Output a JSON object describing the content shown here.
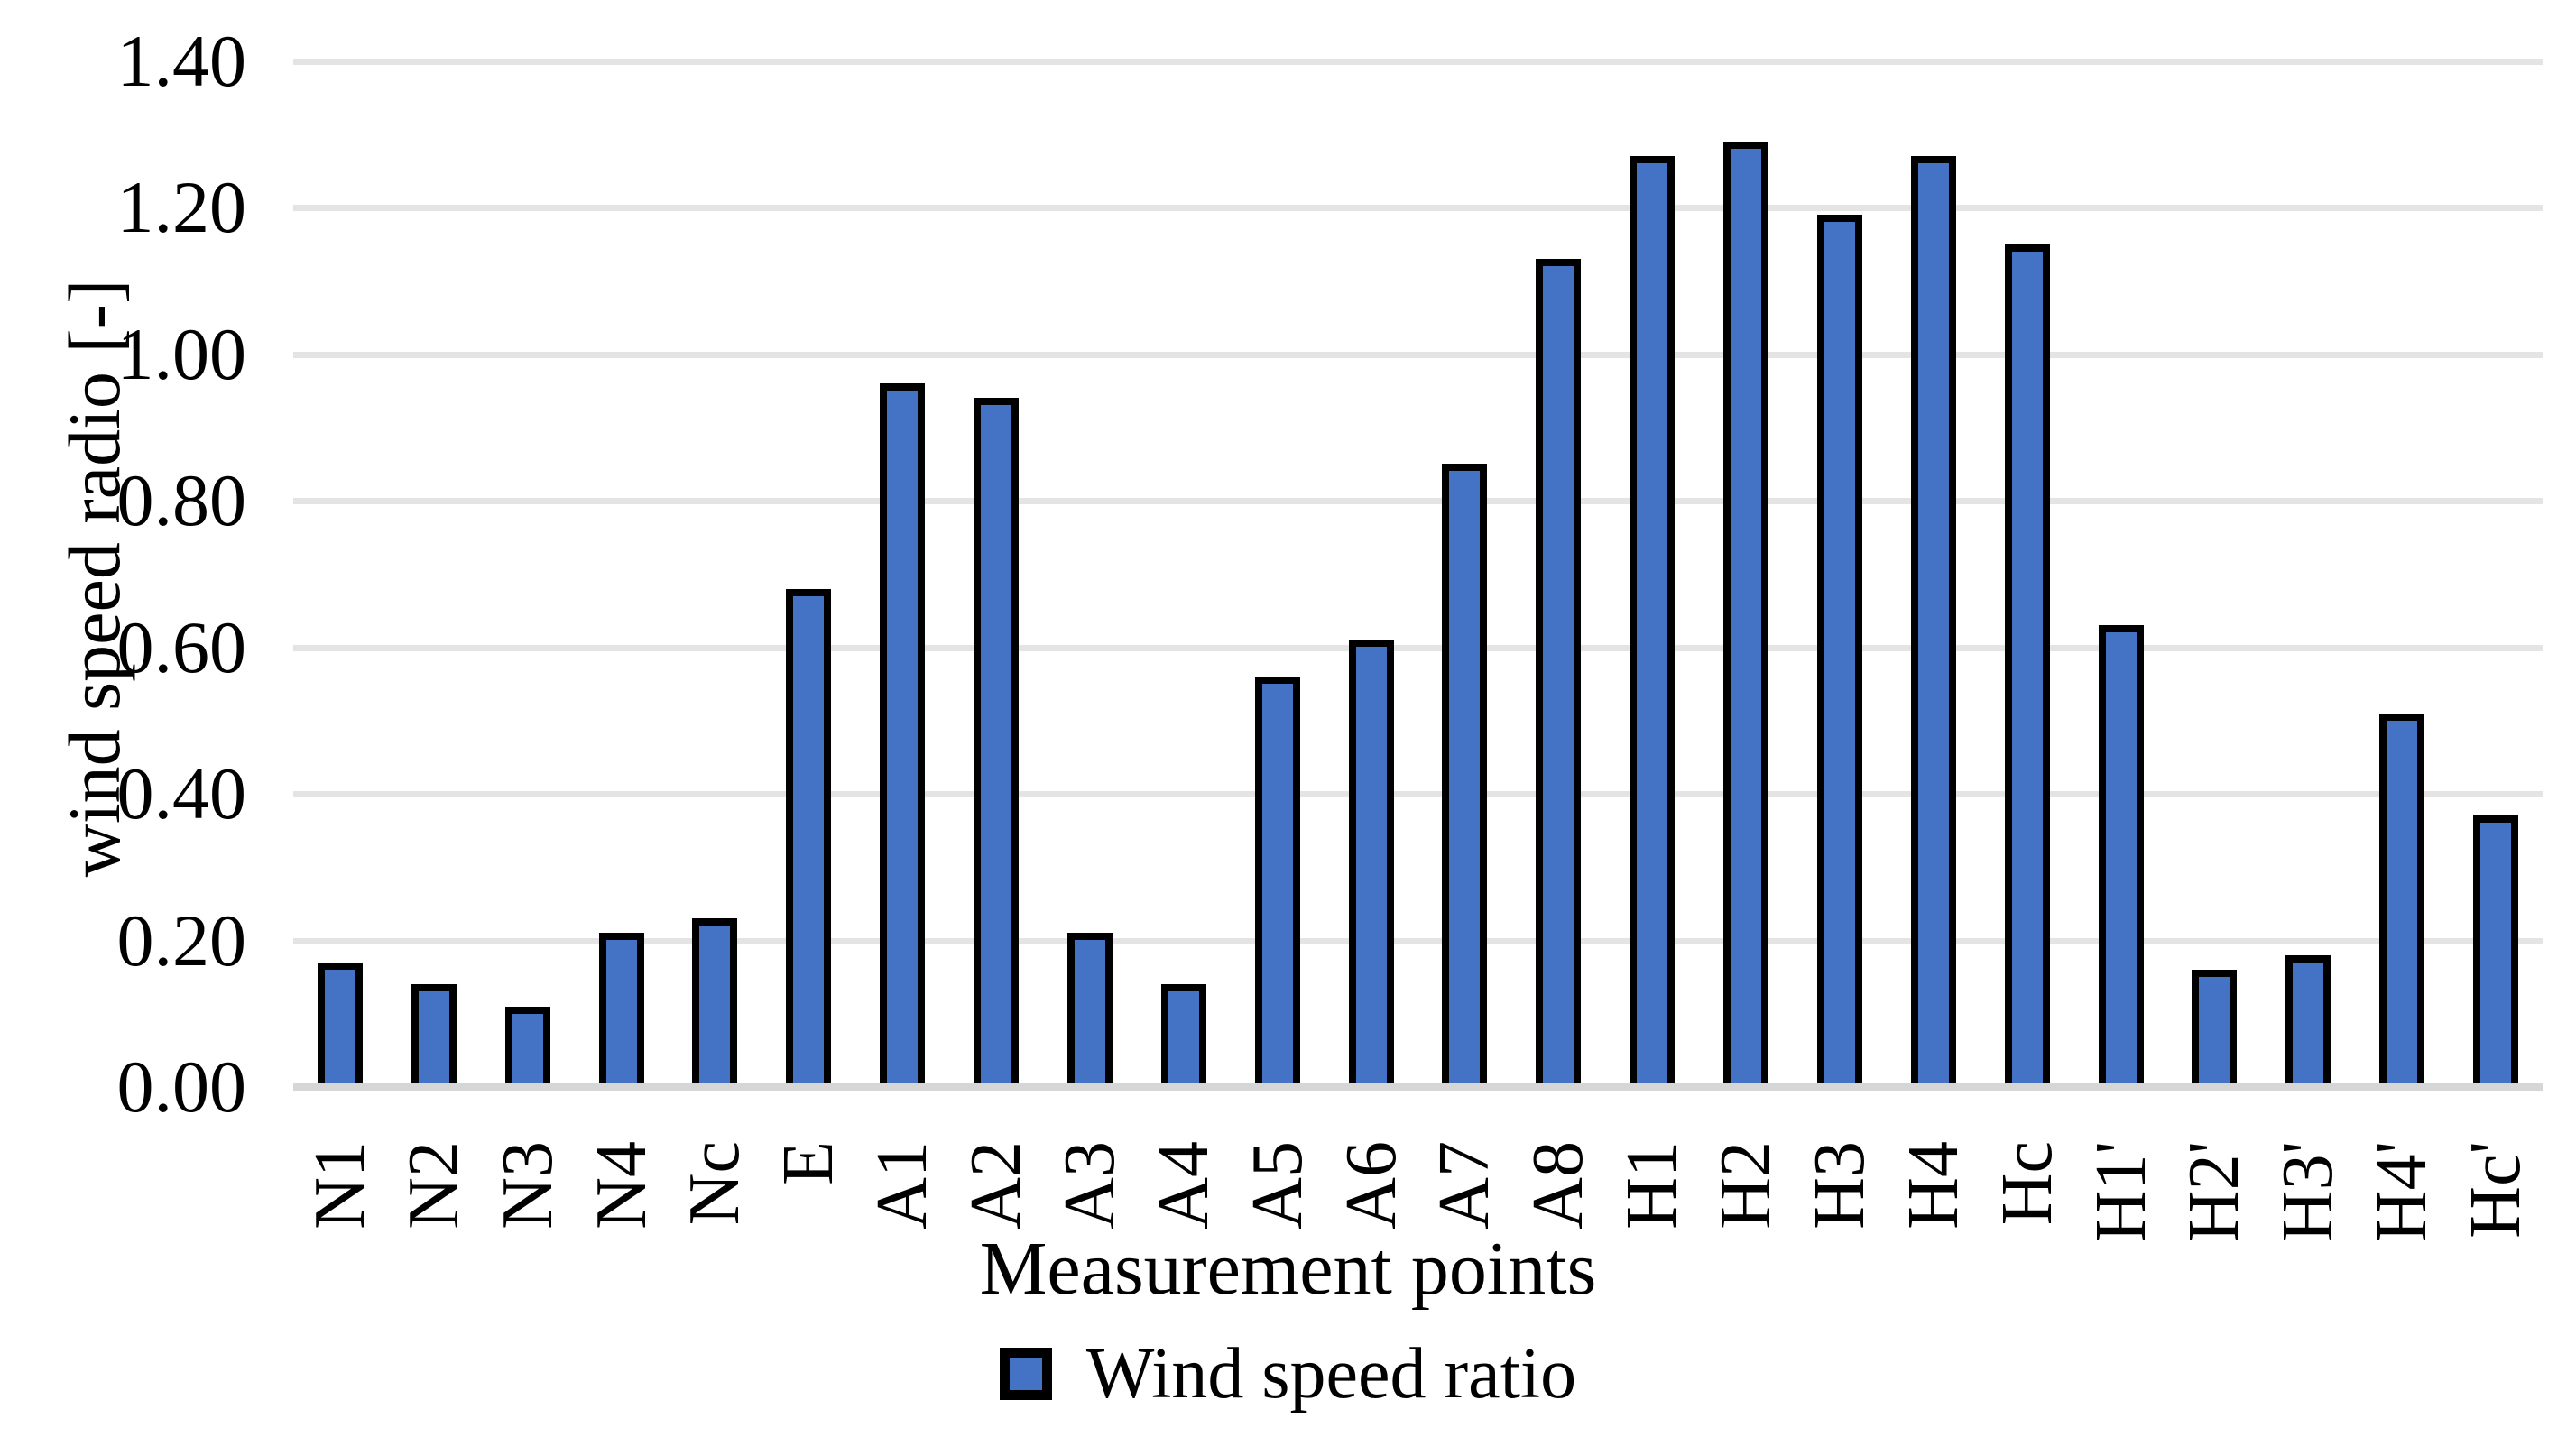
{
  "chart_data": {
    "type": "bar",
    "title": "",
    "xlabel": "Measurement points",
    "ylabel": "wind speed radio [-]",
    "categories": [
      "N1",
      "N2",
      "N3",
      "N4",
      "Nc",
      "E",
      "A1",
      "A2",
      "A3",
      "A4",
      "A5",
      "A6",
      "A7",
      "A8",
      "H1",
      "H2",
      "H3",
      "H4",
      "Hc",
      "H1'",
      "H2'",
      "H3'",
      "H4'",
      "Hc'"
    ],
    "values": [
      0.17,
      0.14,
      0.11,
      0.21,
      0.23,
      0.68,
      0.96,
      0.94,
      0.21,
      0.14,
      0.56,
      0.61,
      0.85,
      1.13,
      1.27,
      1.29,
      1.19,
      1.27,
      1.15,
      0.63,
      0.16,
      0.18,
      0.51,
      0.37
    ],
    "series": [
      {
        "name": "Wind speed ratio"
      }
    ],
    "ylim": [
      0.0,
      1.4
    ],
    "ytick_step": 0.2,
    "ytick_labels": [
      "0.00",
      "0.20",
      "0.40",
      "0.60",
      "0.80",
      "1.00",
      "1.20",
      "1.40"
    ],
    "grid": "horizontal",
    "legend_position": "bottom",
    "colors": {
      "bar_fill": "#4472C4",
      "bar_border": "#000000",
      "gridline": "#E4E4E4",
      "axis_line": "#D6D6D6",
      "text": "#000000",
      "background": "#FFFFFF"
    }
  },
  "legend": {
    "label": "Wind speed ratio",
    "marker": "blue-square-with-black-border"
  }
}
